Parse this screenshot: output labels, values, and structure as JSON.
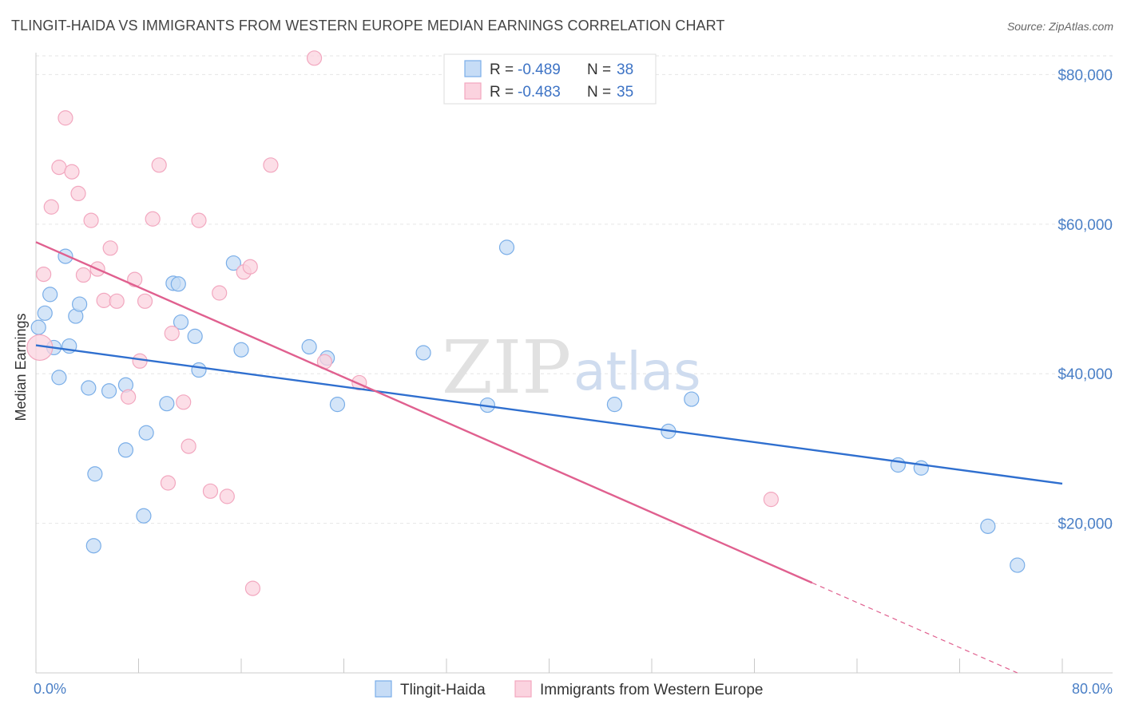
{
  "title": "TLINGIT-HAIDA VS IMMIGRANTS FROM WESTERN EUROPE MEDIAN EARNINGS CORRELATION CHART",
  "source": "Source: ZipAtlas.com",
  "watermark": {
    "zip": "ZIP",
    "atlas": "atlas"
  },
  "chart_data": {
    "type": "scatter",
    "title": "TLINGIT-HAIDA VS IMMIGRANTS FROM WESTERN EUROPE MEDIAN EARNINGS CORRELATION CHART",
    "xlabel": "",
    "ylabel": "Median Earnings",
    "xlim": [
      0,
      80
    ],
    "ylim": [
      0,
      82500
    ],
    "x_tick_labels": {
      "left": "0.0%",
      "right": "80.0%"
    },
    "y_ticks": [
      {
        "value": 20000,
        "label": "$20,000"
      },
      {
        "value": 40000,
        "label": "$40,000"
      },
      {
        "value": 60000,
        "label": "$60,000"
      },
      {
        "value": 80000,
        "label": "$80,000"
      }
    ],
    "grid": true,
    "legend_position": "top-center",
    "stats": [
      {
        "r_label": "R =",
        "r_value": "-0.489",
        "n_label": "N =",
        "n_value": "38"
      },
      {
        "r_label": "R =",
        "r_value": "-0.483",
        "n_label": "N =",
        "n_value": "35"
      }
    ],
    "series": [
      {
        "name": "Tlingit-Haida",
        "color": "#7aaee8",
        "fill": "#c6dcf6",
        "line_color": "#2f6fcf",
        "trend": {
          "x0": 0,
          "y0": 43800,
          "x1": 80,
          "y1": 25300,
          "dash_from": null
        },
        "points": [
          [
            0.2,
            46200
          ],
          [
            0.7,
            48100
          ],
          [
            1.1,
            50600
          ],
          [
            1.4,
            43500
          ],
          [
            2.3,
            55700
          ],
          [
            2.6,
            43700
          ],
          [
            3.1,
            47700
          ],
          [
            3.4,
            49300
          ],
          [
            1.8,
            39500
          ],
          [
            4.1,
            38100
          ],
          [
            5.7,
            37700
          ],
          [
            7.0,
            38500
          ],
          [
            4.6,
            26600
          ],
          [
            7.0,
            29800
          ],
          [
            8.6,
            32100
          ],
          [
            8.4,
            21000
          ],
          [
            4.5,
            17000
          ],
          [
            10.2,
            36000
          ],
          [
            10.7,
            52100
          ],
          [
            11.1,
            52000
          ],
          [
            11.3,
            46900
          ],
          [
            12.4,
            45000
          ],
          [
            12.7,
            40500
          ],
          [
            15.4,
            54800
          ],
          [
            16.0,
            43200
          ],
          [
            21.3,
            43600
          ],
          [
            22.7,
            42100
          ],
          [
            23.5,
            35900
          ],
          [
            30.2,
            42800
          ],
          [
            35.2,
            35800
          ],
          [
            36.7,
            56900
          ],
          [
            45.1,
            35900
          ],
          [
            49.3,
            32300
          ],
          [
            51.1,
            36600
          ],
          [
            67.2,
            27800
          ],
          [
            69.0,
            27400
          ],
          [
            74.2,
            19600
          ],
          [
            76.5,
            14400
          ]
        ]
      },
      {
        "name": "Immigrants from Western Europe",
        "color": "#f2a7bf",
        "fill": "#fbd3df",
        "line_color": "#e0608f",
        "trend": {
          "x0": 0,
          "y0": 57600,
          "x1": 76.5,
          "y1": 0,
          "dash_from": 60.5
        },
        "points": [
          [
            0.3,
            43500
          ],
          [
            0.6,
            53300
          ],
          [
            1.2,
            62300
          ],
          [
            1.8,
            67600
          ],
          [
            2.3,
            74200
          ],
          [
            2.8,
            67000
          ],
          [
            3.3,
            64100
          ],
          [
            3.7,
            53200
          ],
          [
            4.3,
            60500
          ],
          [
            4.8,
            54000
          ],
          [
            5.3,
            49800
          ],
          [
            5.8,
            56800
          ],
          [
            6.3,
            49700
          ],
          [
            7.2,
            36900
          ],
          [
            7.7,
            52600
          ],
          [
            8.1,
            41700
          ],
          [
            8.5,
            49700
          ],
          [
            9.1,
            60700
          ],
          [
            9.6,
            67900
          ],
          [
            10.3,
            25400
          ],
          [
            10.6,
            45400
          ],
          [
            11.5,
            36200
          ],
          [
            11.9,
            30300
          ],
          [
            12.7,
            60500
          ],
          [
            13.6,
            24300
          ],
          [
            14.3,
            50800
          ],
          [
            14.9,
            23600
          ],
          [
            16.2,
            53600
          ],
          [
            16.7,
            54300
          ],
          [
            16.9,
            11300
          ],
          [
            18.3,
            67900
          ],
          [
            21.7,
            82200
          ],
          [
            22.5,
            41600
          ],
          [
            25.2,
            38800
          ],
          [
            57.3,
            23200
          ]
        ]
      }
    ]
  }
}
